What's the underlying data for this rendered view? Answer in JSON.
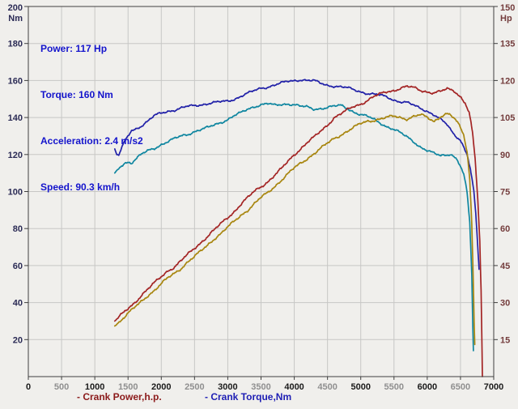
{
  "window": {
    "background": "#f0efec"
  },
  "info_panel": {
    "text_color": "#1414cc",
    "lines": [
      "Power: 117 Hp",
      "Torque: 160 Nm",
      "Acceleration: 2.4 m/s2",
      "Speed: 90.3 km/h"
    ]
  },
  "legend": {
    "items": [
      {
        "label": "- Crank Power,h.p.",
        "color": "#8b1a1a"
      },
      {
        "label": "- Crank Torque,Nm",
        "color": "#1e1eb4"
      }
    ]
  },
  "chart_data": {
    "type": "line",
    "title": "",
    "xlabel": "",
    "x_axis": {
      "min": 0,
      "max": 7000,
      "tick_step": 500,
      "tick_labels": [
        "0",
        "500",
        "1000",
        "1500",
        "2000",
        "2500",
        "3000",
        "3500",
        "4000",
        "4500",
        "5000",
        "5500",
        "6000",
        "6500",
        "7000"
      ],
      "major_label_color": "#1a1a1a",
      "minor_label_color": "#8f8f8f"
    },
    "left_axis": {
      "unit": "Nm",
      "min": 0,
      "max": 200,
      "tick_step": 20,
      "tick_labels": [
        "200",
        "180",
        "160",
        "140",
        "120",
        "100",
        "80",
        "60",
        "40",
        "20"
      ],
      "label_color": "#2b2b55"
    },
    "right_axis": {
      "unit": "Hp",
      "min": 0,
      "max": 150,
      "tick_step": 15,
      "tick_labels": [
        "150",
        "135",
        "120",
        "105",
        "90",
        "75",
        "60",
        "45",
        "30",
        "15"
      ],
      "label_color": "#743d3d"
    },
    "grid": {
      "on": true,
      "color": "#c7c7c5",
      "border_color": "#3f3f3f",
      "tick_color": "#3f3f3f"
    },
    "legend_position": "bottom-left",
    "peaks": {
      "power_hp": 117,
      "torque_nm": 160,
      "acceleration_ms2": 2.4,
      "speed_kmh": 90.3
    },
    "series": [
      {
        "name": "crank-torque-run1",
        "axis": "left",
        "color": "#2121a8",
        "noise": 0.7,
        "seed": 1,
        "points": [
          [
            1300,
            123
          ],
          [
            1330,
            120
          ],
          [
            1360,
            119.5
          ],
          [
            1400,
            123
          ],
          [
            1450,
            127
          ],
          [
            1500,
            130
          ],
          [
            1550,
            133
          ],
          [
            1620,
            134
          ],
          [
            1700,
            135.5
          ],
          [
            1800,
            138
          ],
          [
            1900,
            141
          ],
          [
            2000,
            142.5
          ],
          [
            2100,
            143.5
          ],
          [
            2200,
            144
          ],
          [
            2300,
            145
          ],
          [
            2400,
            146
          ],
          [
            2500,
            146.5
          ],
          [
            2600,
            147
          ],
          [
            2700,
            147.5
          ],
          [
            2800,
            148
          ],
          [
            2900,
            148.5
          ],
          [
            3000,
            149
          ],
          [
            3100,
            150
          ],
          [
            3200,
            151.5
          ],
          [
            3300,
            153
          ],
          [
            3400,
            154.5
          ],
          [
            3500,
            156
          ],
          [
            3600,
            156.5
          ],
          [
            3700,
            157.5
          ],
          [
            3800,
            158.5
          ],
          [
            3900,
            159.5
          ],
          [
            4000,
            160
          ],
          [
            4100,
            160.5
          ],
          [
            4200,
            160
          ],
          [
            4300,
            159.8
          ],
          [
            4400,
            158.5
          ],
          [
            4500,
            157.5
          ],
          [
            4600,
            157
          ],
          [
            4700,
            156.5
          ],
          [
            4800,
            156
          ],
          [
            4900,
            155
          ],
          [
            5000,
            154
          ],
          [
            5100,
            153
          ],
          [
            5200,
            152.5
          ],
          [
            5300,
            152
          ],
          [
            5400,
            151
          ],
          [
            5500,
            149.5
          ],
          [
            5600,
            148.5
          ],
          [
            5700,
            148
          ],
          [
            5800,
            146.5
          ],
          [
            5900,
            145
          ],
          [
            6000,
            143.5
          ],
          [
            6100,
            141.5
          ],
          [
            6200,
            139
          ],
          [
            6300,
            136
          ],
          [
            6400,
            131
          ],
          [
            6500,
            128
          ],
          [
            6550,
            124
          ],
          [
            6600,
            120
          ],
          [
            6650,
            112
          ],
          [
            6700,
            100
          ],
          [
            6730,
            88
          ],
          [
            6760,
            70
          ],
          [
            6780,
            58
          ]
        ]
      },
      {
        "name": "crank-torque-run2",
        "axis": "left",
        "color": "#0f86a0",
        "noise": 0.75,
        "seed": 2,
        "points": [
          [
            1300,
            110
          ],
          [
            1350,
            112
          ],
          [
            1400,
            114
          ],
          [
            1450,
            115.5
          ],
          [
            1500,
            116
          ],
          [
            1550,
            115.5
          ],
          [
            1600,
            117
          ],
          [
            1700,
            120
          ],
          [
            1800,
            122
          ],
          [
            1900,
            123.5
          ],
          [
            2000,
            125.5
          ],
          [
            2100,
            127
          ],
          [
            2200,
            128.5
          ],
          [
            2300,
            130
          ],
          [
            2400,
            131
          ],
          [
            2500,
            132.5
          ],
          [
            2600,
            133.5
          ],
          [
            2700,
            134.5
          ],
          [
            2800,
            136
          ],
          [
            2900,
            137.5
          ],
          [
            3000,
            139
          ],
          [
            3100,
            141
          ],
          [
            3200,
            142.5
          ],
          [
            3300,
            144.5
          ],
          [
            3400,
            146
          ],
          [
            3500,
            147
          ],
          [
            3600,
            147.5
          ],
          [
            3700,
            146.5
          ],
          [
            3800,
            147
          ],
          [
            3900,
            147.5
          ],
          [
            4000,
            147
          ],
          [
            4100,
            146
          ],
          [
            4200,
            145.5
          ],
          [
            4300,
            144.5
          ],
          [
            4400,
            145
          ],
          [
            4500,
            145.5
          ],
          [
            4600,
            146
          ],
          [
            4700,
            146.5
          ],
          [
            4800,
            145
          ],
          [
            4900,
            143
          ],
          [
            5000,
            141.5
          ],
          [
            5100,
            140.5
          ],
          [
            5200,
            139
          ],
          [
            5300,
            137
          ],
          [
            5400,
            135
          ],
          [
            5500,
            133.5
          ],
          [
            5600,
            131.5
          ],
          [
            5700,
            129.5
          ],
          [
            5800,
            127
          ],
          [
            5900,
            124
          ],
          [
            6000,
            122
          ],
          [
            6100,
            120.5
          ],
          [
            6200,
            119.5
          ],
          [
            6300,
            120
          ],
          [
            6350,
            120.5
          ],
          [
            6400,
            119
          ],
          [
            6450,
            117
          ],
          [
            6500,
            113.5
          ],
          [
            6550,
            109
          ],
          [
            6600,
            99
          ],
          [
            6640,
            83
          ],
          [
            6670,
            55
          ],
          [
            6685,
            28
          ],
          [
            6695,
            14
          ]
        ]
      },
      {
        "name": "crank-power-run2",
        "axis": "right",
        "color": "#a8860f",
        "noise": 0.6,
        "seed": 3,
        "points": [
          [
            1300,
            20.5
          ],
          [
            1400,
            23
          ],
          [
            1500,
            25.5
          ],
          [
            1600,
            28
          ],
          [
            1700,
            30.5
          ],
          [
            1800,
            33
          ],
          [
            1900,
            35
          ],
          [
            2000,
            37.5
          ],
          [
            2100,
            40
          ],
          [
            2200,
            42
          ],
          [
            2300,
            44
          ],
          [
            2400,
            46.5
          ],
          [
            2500,
            48.5
          ],
          [
            2600,
            51
          ],
          [
            2700,
            53.5
          ],
          [
            2800,
            56
          ],
          [
            2900,
            58
          ],
          [
            3000,
            60.5
          ],
          [
            3100,
            63
          ],
          [
            3200,
            65.5
          ],
          [
            3300,
            67.5
          ],
          [
            3400,
            70
          ],
          [
            3500,
            72.5
          ],
          [
            3600,
            74.5
          ],
          [
            3700,
            77
          ],
          [
            3800,
            79.5
          ],
          [
            3900,
            82
          ],
          [
            4000,
            84.5
          ],
          [
            4100,
            86.5
          ],
          [
            4200,
            88.5
          ],
          [
            4300,
            90.5
          ],
          [
            4400,
            92.5
          ],
          [
            4500,
            94.5
          ],
          [
            4600,
            96.5
          ],
          [
            4700,
            98
          ],
          [
            4800,
            99.5
          ],
          [
            4900,
            101
          ],
          [
            5000,
            102.5
          ],
          [
            5100,
            103.5
          ],
          [
            5200,
            104
          ],
          [
            5300,
            104.5
          ],
          [
            5400,
            105
          ],
          [
            5500,
            105.5
          ],
          [
            5600,
            105
          ],
          [
            5700,
            104.5
          ],
          [
            5800,
            105.5
          ],
          [
            5900,
            106
          ],
          [
            6000,
            105
          ],
          [
            6100,
            103.5
          ],
          [
            6200,
            105.5
          ],
          [
            6300,
            106.5
          ],
          [
            6350,
            106
          ],
          [
            6400,
            104.5
          ],
          [
            6450,
            103
          ],
          [
            6500,
            101
          ],
          [
            6550,
            98
          ],
          [
            6600,
            91
          ],
          [
            6640,
            80
          ],
          [
            6670,
            62
          ],
          [
            6690,
            42
          ],
          [
            6705,
            22
          ],
          [
            6715,
            13
          ]
        ]
      },
      {
        "name": "crank-power-run1",
        "axis": "right",
        "color": "#a32424",
        "noise": 0.6,
        "seed": 4,
        "points": [
          [
            1300,
            22.5
          ],
          [
            1400,
            25
          ],
          [
            1500,
            27.5
          ],
          [
            1600,
            30
          ],
          [
            1700,
            33
          ],
          [
            1800,
            35.5
          ],
          [
            1900,
            38
          ],
          [
            2000,
            40.5
          ],
          [
            2100,
            43
          ],
          [
            2200,
            44.5
          ],
          [
            2300,
            47
          ],
          [
            2400,
            49.5
          ],
          [
            2500,
            52
          ],
          [
            2600,
            54.5
          ],
          [
            2700,
            57
          ],
          [
            2800,
            59.5
          ],
          [
            2900,
            62
          ],
          [
            3000,
            64.5
          ],
          [
            3100,
            67
          ],
          [
            3200,
            70
          ],
          [
            3300,
            72.5
          ],
          [
            3400,
            75
          ],
          [
            3500,
            77
          ],
          [
            3600,
            79
          ],
          [
            3700,
            81.5
          ],
          [
            3800,
            84
          ],
          [
            3900,
            87
          ],
          [
            4000,
            90
          ],
          [
            4100,
            92.5
          ],
          [
            4200,
            95
          ],
          [
            4300,
            97
          ],
          [
            4400,
            99.5
          ],
          [
            4500,
            102
          ],
          [
            4600,
            105
          ],
          [
            4700,
            106.5
          ],
          [
            4800,
            108
          ],
          [
            4900,
            109.5
          ],
          [
            5000,
            110.5
          ],
          [
            5100,
            112
          ],
          [
            5200,
            113.5
          ],
          [
            5300,
            114.5
          ],
          [
            5400,
            115.5
          ],
          [
            5500,
            116
          ],
          [
            5600,
            117
          ],
          [
            5700,
            117.5
          ],
          [
            5800,
            117
          ],
          [
            5900,
            116
          ],
          [
            6000,
            115.5
          ],
          [
            6100,
            115
          ],
          [
            6200,
            115.5
          ],
          [
            6300,
            116.5
          ],
          [
            6400,
            116
          ],
          [
            6500,
            113.5
          ],
          [
            6570,
            111
          ],
          [
            6630,
            107
          ],
          [
            6680,
            99
          ],
          [
            6720,
            88
          ],
          [
            6760,
            72
          ],
          [
            6790,
            55
          ],
          [
            6810,
            35
          ],
          [
            6825,
            10
          ],
          [
            6830,
            0
          ]
        ]
      }
    ]
  }
}
